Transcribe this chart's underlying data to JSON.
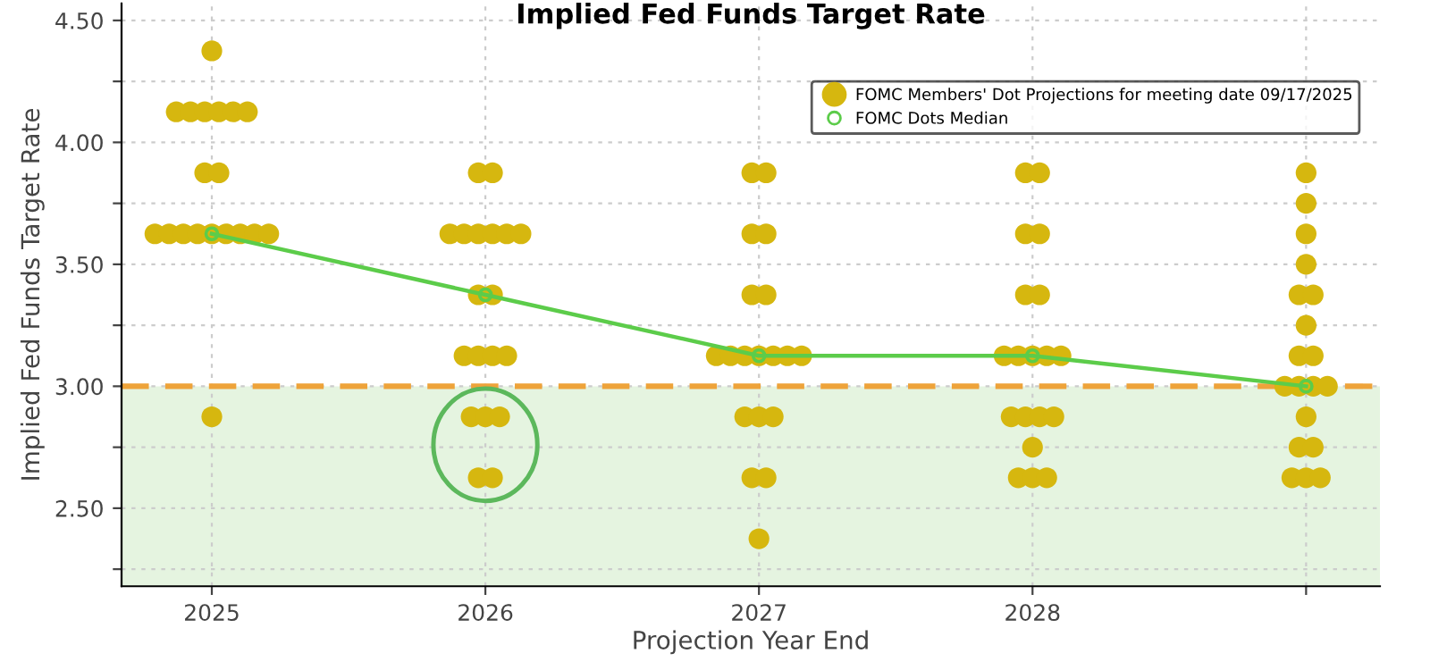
{
  "chart_data": {
    "type": "scatter",
    "title": "Implied Fed Funds Target Rate",
    "xlabel": "Projection Year End",
    "ylabel": "Implied Fed Funds Target Rate",
    "categories": [
      "2025",
      "2026",
      "2027",
      "2028",
      null
    ],
    "series": [
      {
        "name": "FOMC Members' Dot Projections for meeting date 09/17/2025",
        "color": "#d6b70f",
        "marker": "circle",
        "values": [
          4.375,
          3.875,
          3.875,
          3.875,
          3.875
        ]
      },
      {
        "color": "#d6b70f",
        "marker": "circle",
        "values": [
          4.125,
          3.875,
          3.875,
          3.875,
          3.75
        ]
      },
      {
        "color": "#d6b70f",
        "marker": "circle",
        "values": [
          4.125,
          3.625,
          3.625,
          3.625,
          3.625
        ]
      },
      {
        "color": "#d6b70f",
        "marker": "circle",
        "values": [
          4.125,
          3.625,
          3.625,
          3.625,
          3.5
        ]
      },
      {
        "color": "#d6b70f",
        "marker": "circle",
        "values": [
          4.125,
          3.625,
          3.375,
          3.375,
          3.375
        ]
      },
      {
        "color": "#d6b70f",
        "marker": "circle",
        "values": [
          4.125,
          3.625,
          3.375,
          3.375,
          3.375
        ]
      },
      {
        "color": "#d6b70f",
        "marker": "circle",
        "values": [
          4.125,
          3.625,
          3.125,
          3.125,
          3.25
        ]
      },
      {
        "color": "#d6b70f",
        "marker": "circle",
        "values": [
          3.875,
          3.625,
          3.125,
          3.125,
          3.125
        ]
      },
      {
        "color": "#d6b70f",
        "marker": "circle",
        "values": [
          3.875,
          3.375,
          3.125,
          3.125,
          3.125
        ]
      },
      {
        "color": "#d6b70f",
        "marker": "circle",
        "values": [
          3.625,
          3.375,
          3.125,
          3.125,
          3.0
        ]
      },
      {
        "color": "#d6b70f",
        "marker": "circle",
        "values": [
          3.625,
          3.125,
          3.125,
          3.125,
          3.0
        ]
      },
      {
        "color": "#d6b70f",
        "marker": "circle",
        "values": [
          3.625,
          3.125,
          3.125,
          2.875,
          3.0
        ]
      },
      {
        "color": "#d6b70f",
        "marker": "circle",
        "values": [
          3.625,
          3.125,
          3.125,
          2.875,
          3.0
        ]
      },
      {
        "color": "#d6b70f",
        "marker": "circle",
        "values": [
          3.625,
          3.125,
          2.875,
          2.875,
          2.875
        ]
      },
      {
        "color": "#d6b70f",
        "marker": "circle",
        "values": [
          3.625,
          2.875,
          2.875,
          2.875,
          2.75
        ]
      },
      {
        "color": "#d6b70f",
        "marker": "circle",
        "values": [
          3.625,
          2.875,
          2.875,
          2.75,
          2.75
        ]
      },
      {
        "color": "#d6b70f",
        "marker": "circle",
        "values": [
          3.625,
          2.875,
          2.625,
          2.625,
          2.625
        ]
      },
      {
        "color": "#d6b70f",
        "marker": "circle",
        "values": [
          3.625,
          2.625,
          2.625,
          2.625,
          2.625
        ]
      },
      {
        "color": "#d6b70f",
        "marker": "circle",
        "values": [
          2.875,
          2.625,
          2.375,
          2.625,
          2.625
        ]
      },
      {
        "name": "FOMC Dots Median",
        "type": "line",
        "color": "#5ccc4a",
        "marker": "circle",
        "line_style": "solid",
        "values": [
          3.625,
          3.375,
          3.125,
          3.125,
          3.0
        ]
      }
    ],
    "ylim": [
      2.18,
      4.57
    ],
    "yticks": [
      {
        "value": 2.25,
        "label": null
      },
      {
        "value": 2.5,
        "label": "2.50"
      },
      {
        "value": 2.75,
        "label": null
      },
      {
        "value": 3.0,
        "label": "3.00"
      },
      {
        "value": 3.25,
        "label": null
      },
      {
        "value": 3.5,
        "label": "3.50"
      },
      {
        "value": 3.75,
        "label": null
      },
      {
        "value": 4.0,
        "label": "4.00"
      },
      {
        "value": 4.25,
        "label": null
      },
      {
        "value": 4.5,
        "label": "4.50"
      }
    ],
    "ref_lines": [
      {
        "axis": "y",
        "value": 3.0,
        "color": "#eea33a",
        "line_style": "dashed"
      }
    ],
    "bands": [
      {
        "axis": "y",
        "from": 2.18,
        "to": 3.0,
        "color": "#e5f4e0"
      }
    ],
    "grid": true,
    "legend": "top right"
  }
}
